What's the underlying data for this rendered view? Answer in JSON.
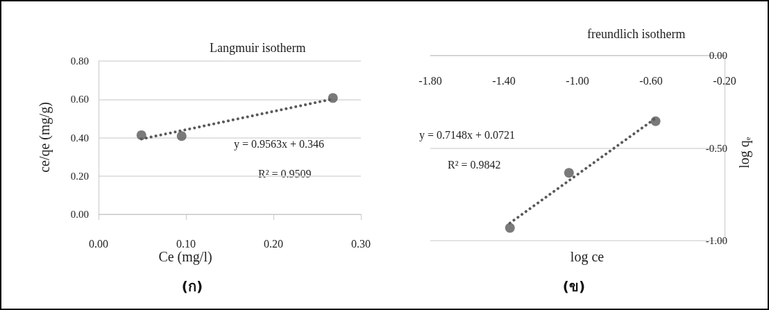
{
  "chart_data": [
    {
      "type": "scatter",
      "title": "Langmuir isotherm",
      "xlabel": "Ce (mg/l)",
      "ylabel": "ce/qe (mg/g)",
      "marker": "circle",
      "grid": "y",
      "xlim": [
        0,
        0.3
      ],
      "xticks": [
        {
          "value": 0,
          "label": "0.00"
        },
        {
          "value": 0.1,
          "label": "0.10"
        },
        {
          "value": 0.2,
          "label": "0.20"
        },
        {
          "value": 0.3,
          "label": "0.30"
        }
      ],
      "ylim": [
        0,
        0.8
      ],
      "yticks": [
        {
          "value": 0,
          "label": "0.00"
        },
        {
          "value": 0.2,
          "label": "0.20"
        },
        {
          "value": 0.4,
          "label": "0.40"
        },
        {
          "value": 0.6,
          "label": "0.60"
        },
        {
          "value": 0.8,
          "label": "0.80"
        }
      ],
      "x": [
        0.049,
        0.095,
        0.268
      ],
      "series": [
        {
          "type": "scatter",
          "color": "#595959",
          "values": [
            0.413,
            0.408,
            0.607
          ]
        },
        {
          "type": "line",
          "color": "#595959",
          "line_style": "dotted",
          "marker": "none",
          "x": [
            0.049,
            0.268
          ],
          "values": [
            0.393,
            0.602
          ]
        }
      ],
      "annotations": [
        "y = 0.9563x + 0.346",
        "R² = 0.9509",
        "(ก)"
      ]
    },
    {
      "type": "scatter",
      "title": "freundlich isotherm",
      "xlabel": "log ce",
      "y2label": "log q$_{e}$",
      "marker": "circle",
      "grid": "y",
      "xlim": [
        -1.8,
        -0.2
      ],
      "xticks": [
        {
          "value": -1.8,
          "label": "-1.80"
        },
        {
          "value": -1.4,
          "label": "-1.40"
        },
        {
          "value": -1,
          "label": "-1.00"
        },
        {
          "value": -0.6,
          "label": "-0.60"
        },
        {
          "value": -0.2,
          "label": "-0.20"
        }
      ],
      "y2lim": [
        -1,
        0
      ],
      "y2ticks": [
        {
          "value": -1,
          "label": "-1.00"
        },
        {
          "value": -0.5,
          "label": "-0.50"
        },
        {
          "value": 0,
          "label": "0.00"
        }
      ],
      "x": [
        -1.367,
        -1.046,
        -0.575
      ],
      "series": [
        {
          "type": "scatter",
          "axis": "y2",
          "color": "#595959",
          "values": [
            -0.931,
            -0.634,
            -0.355
          ]
        },
        {
          "type": "line",
          "axis": "y2",
          "color": "#595959",
          "line_style": "dotted",
          "marker": "none",
          "x": [
            -1.367,
            -0.575
          ],
          "values": [
            -0.905,
            -0.339
          ]
        }
      ],
      "annotations": [
        "y = 0.7148x + 0.0721",
        "R² = 0.9842",
        "(ข)"
      ]
    }
  ]
}
